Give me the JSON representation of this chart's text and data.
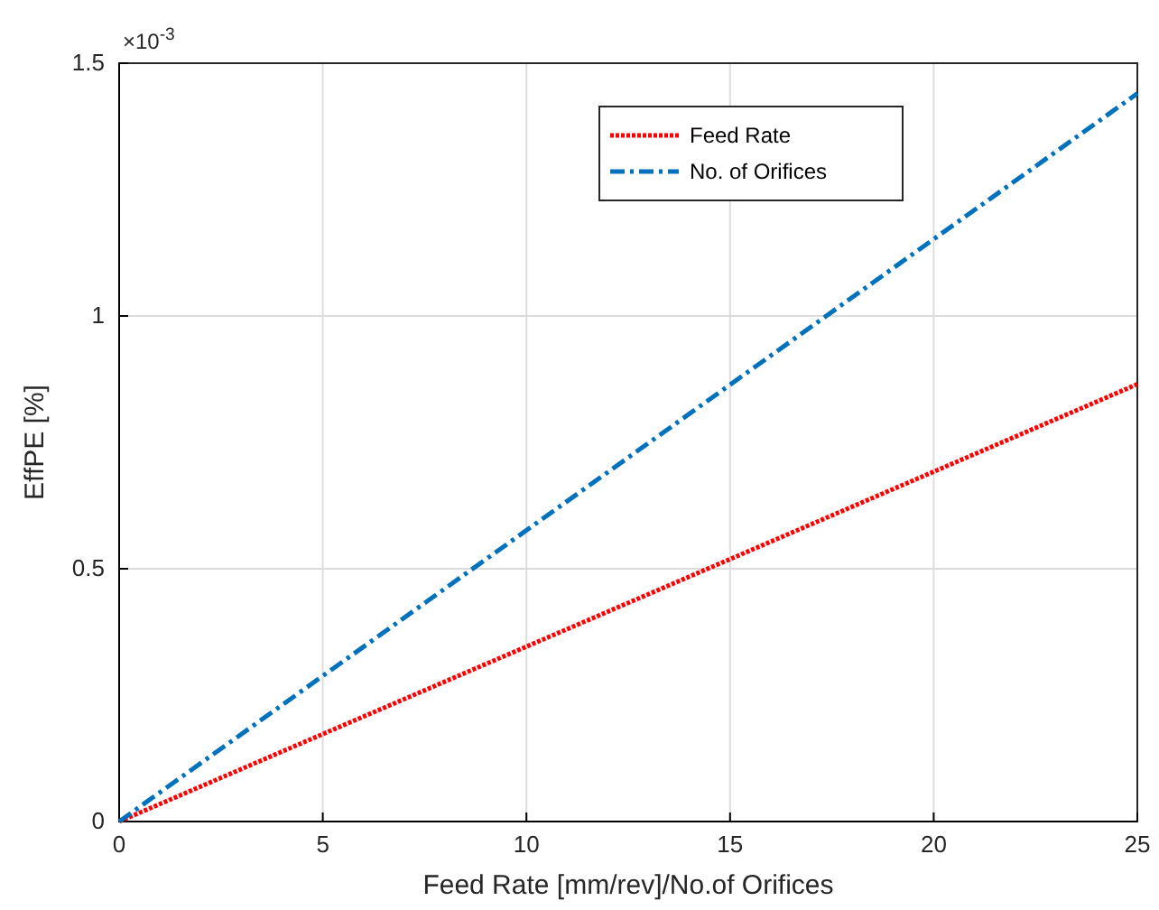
{
  "chart_data": {
    "type": "line",
    "xlabel": "Feed Rate [mm/rev]/No.of Orifices",
    "ylabel": "EffPE [%]",
    "annotations": [
      "×10$^{-3}$"
    ],
    "x": [
      0,
      25
    ],
    "series": [
      {
        "name": "Feed Rate",
        "color": "#ff0000",
        "values": [
          0,
          0.865
        ],
        "line_style": "dotted"
      },
      {
        "name": "No. of Orifices",
        "color": "#0072bd",
        "values": [
          0,
          1.44
        ],
        "line_style": "dashed"
      }
    ],
    "xlim": [
      0,
      25
    ],
    "xticks": [
      0,
      5,
      10,
      15,
      20,
      25
    ],
    "ylim": [
      0,
      1.5
    ],
    "yticks": [
      0,
      0.5,
      1,
      1.5
    ],
    "grid": true,
    "legend": "top right",
    "marker": "none"
  }
}
